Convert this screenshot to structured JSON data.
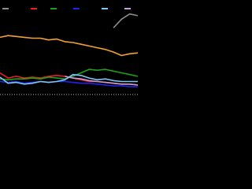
{
  "chart_data": {
    "type": "line",
    "x": [
      0,
      1,
      2,
      3,
      4,
      5,
      6,
      7,
      8,
      9,
      10,
      11,
      12,
      13,
      14,
      15,
      16,
      17
    ],
    "xlim": [
      0,
      17
    ],
    "ylim": [
      0,
      100
    ],
    "legend": "top",
    "series": [
      {
        "color": "#8c8c8c",
        "values": [
          null,
          null,
          null,
          null,
          null,
          null,
          null,
          null,
          null,
          null,
          null,
          null,
          null,
          null,
          77,
          87,
          93,
          91
        ]
      },
      {
        "color": "#e8201c",
        "values": [
          25,
          19,
          21,
          19,
          20,
          19,
          21,
          22,
          21,
          19,
          17,
          15,
          15,
          14,
          13,
          12,
          12,
          11
        ]
      },
      {
        "color": "#1aa01a",
        "values": [
          18,
          17,
          18,
          18,
          19,
          18,
          20,
          19,
          18,
          21,
          25,
          29,
          28,
          29,
          27,
          25,
          23,
          21
        ]
      },
      {
        "color": "#2222ee",
        "values": [
          15,
          14,
          15,
          13,
          14,
          15,
          14,
          15,
          15,
          14,
          13,
          13,
          12,
          11,
          10,
          10,
          9,
          9
        ]
      },
      {
        "color": "#7cc8f4",
        "values": [
          20,
          13,
          14,
          12,
          13,
          15,
          14,
          15,
          17,
          23,
          22,
          19,
          17,
          18,
          16,
          15,
          15,
          15
        ]
      },
      {
        "color": "#c8a0d8",
        "values": [
          null,
          null,
          null,
          null,
          null,
          null,
          null,
          null,
          21,
          19,
          18,
          16,
          15,
          14,
          13,
          12,
          12,
          11
        ]
      },
      {
        "color": "#f5a033",
        "values": [
          66,
          68,
          67,
          66,
          65,
          65,
          63,
          64,
          61,
          60,
          58,
          56,
          54,
          52,
          49,
          45,
          47,
          48
        ]
      }
    ]
  }
}
